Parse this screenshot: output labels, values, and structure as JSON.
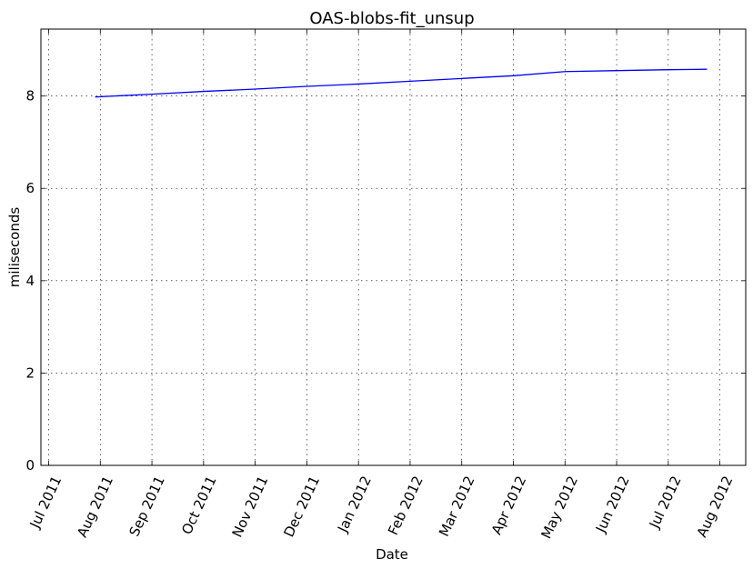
{
  "chart_data": {
    "type": "line",
    "title": "OAS-blobs-fit_unsup",
    "xlabel": "Date",
    "ylabel": "miliseconds",
    "ylim": [
      0,
      9.45
    ],
    "yticks": [
      0,
      2,
      4,
      6,
      8
    ],
    "xlim": [
      -0.15,
      13.5
    ],
    "xticks": [
      "Jul 2011",
      "Aug 2011",
      "Sep 2011",
      "Oct 2011",
      "Nov 2011",
      "Dec 2011",
      "Jan 2012",
      "Feb 2012",
      "Mar 2012",
      "Apr 2012",
      "May 2012",
      "Jun 2012",
      "Jul 2012",
      "Aug 2012"
    ],
    "grid": true,
    "line_color": "#0000ff",
    "series": [
      {
        "name": "OAS-blobs-fit_unsup",
        "x": [
          0.9,
          2.0,
          3.0,
          4.0,
          5.0,
          6.0,
          7.0,
          8.0,
          9.0,
          10.0,
          11.0,
          12.0,
          12.75
        ],
        "values": [
          7.98,
          8.04,
          8.1,
          8.15,
          8.21,
          8.26,
          8.32,
          8.38,
          8.44,
          8.53,
          8.55,
          8.57,
          8.58
        ]
      }
    ]
  }
}
